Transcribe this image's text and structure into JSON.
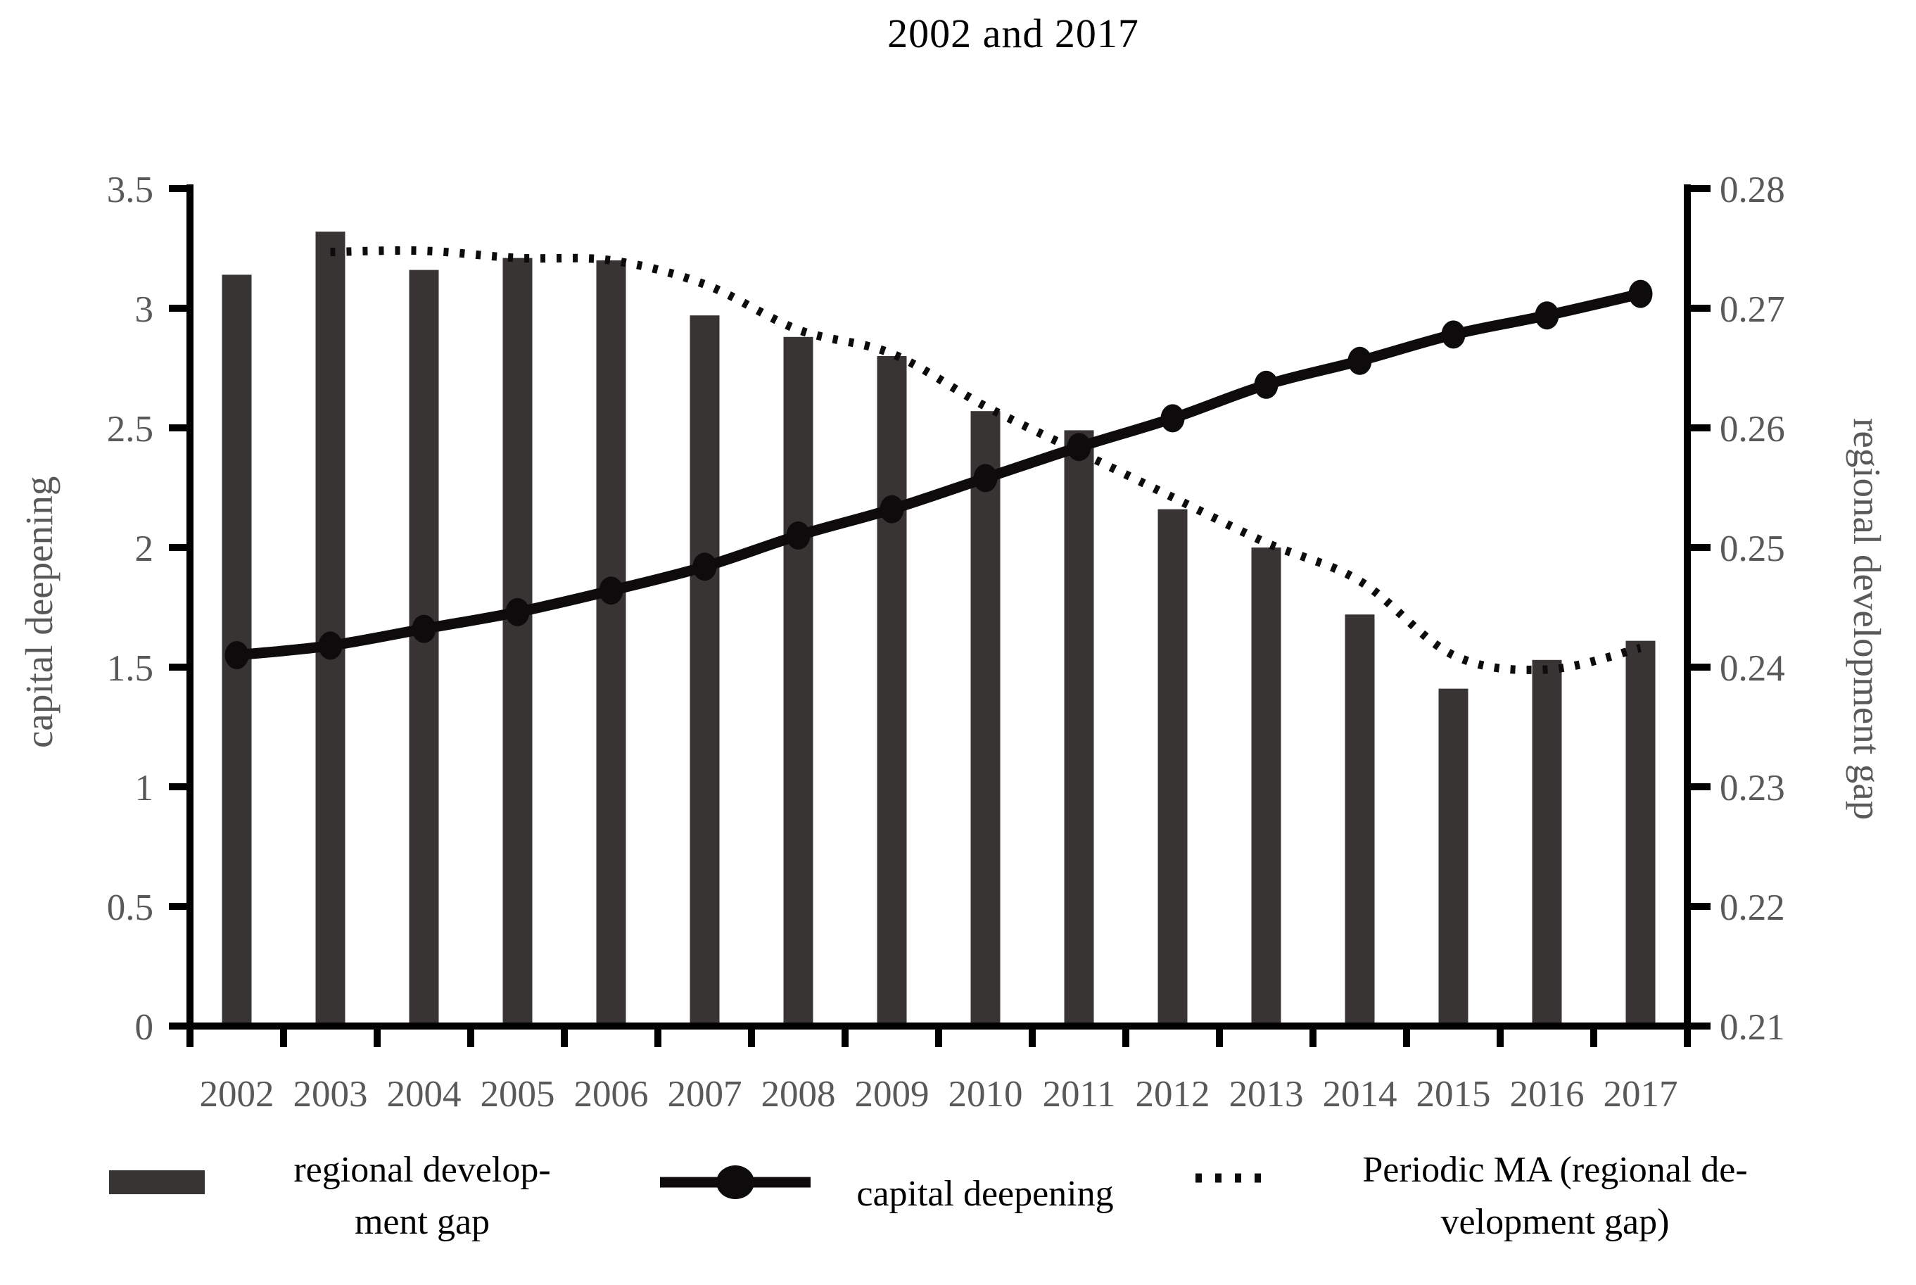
{
  "title": "2002 and 2017",
  "colors": {
    "bar": "#393434",
    "line": "#0d0b0b",
    "axis": "#000000",
    "label_gray": "#595959",
    "text": "#000000"
  },
  "chart_data": {
    "type": "bar",
    "title": "2002 and 2017",
    "grid": false,
    "legend_position": "bottom",
    "categories": [
      "2002",
      "2003",
      "2004",
      "2005",
      "2006",
      "2007",
      "2008",
      "2009",
      "2010",
      "2011",
      "2012",
      "2013",
      "2014",
      "2015",
      "2016",
      "2017"
    ],
    "left_axis": {
      "label": "capital deepening",
      "min": 0,
      "max": 3.5,
      "ticks": [
        "0",
        "0.5",
        "1",
        "1.5",
        "2",
        "2.5",
        "3",
        "3.5"
      ]
    },
    "right_axis": {
      "label": "regional development gap",
      "min": 0.21,
      "max": 0.28,
      "ticks": [
        "0.21",
        "0.22",
        "0.23",
        "0.24",
        "0.25",
        "0.26",
        "0.27",
        "0.28"
      ]
    },
    "series": [
      {
        "name": "regional development gap",
        "type": "bar",
        "axis": "right",
        "values": [
          0.2728,
          0.2764,
          0.2732,
          0.2742,
          0.274,
          0.2694,
          0.2676,
          0.266,
          0.2614,
          0.2598,
          0.2532,
          0.25,
          0.2444,
          0.2382,
          0.2406,
          0.2422
        ]
      },
      {
        "name": "capital deepening",
        "type": "line",
        "axis": "left",
        "values": [
          1.55,
          1.59,
          1.66,
          1.73,
          1.82,
          1.92,
          2.05,
          2.16,
          2.29,
          2.42,
          2.54,
          2.68,
          2.78,
          2.89,
          2.97,
          3.06
        ]
      },
      {
        "name": "Periodic MA (regional development gap)",
        "type": "dotted-line",
        "axis": "right",
        "start_category": "2003",
        "values": [
          0.2747,
          0.2748,
          0.2742,
          0.274,
          0.272,
          0.2682,
          0.2662,
          0.2618,
          0.258,
          0.2542,
          0.2504,
          0.2472,
          0.241,
          0.2398,
          0.2416
        ]
      }
    ]
  },
  "legend": {
    "items": [
      {
        "swatch": "bar",
        "label": "regional develop-\nment gap"
      },
      {
        "swatch": "line-marker",
        "label": "capital deepening"
      },
      {
        "swatch": "dotted-line",
        "label": "Periodic MA (regional de-\nvelopment gap)"
      }
    ]
  }
}
